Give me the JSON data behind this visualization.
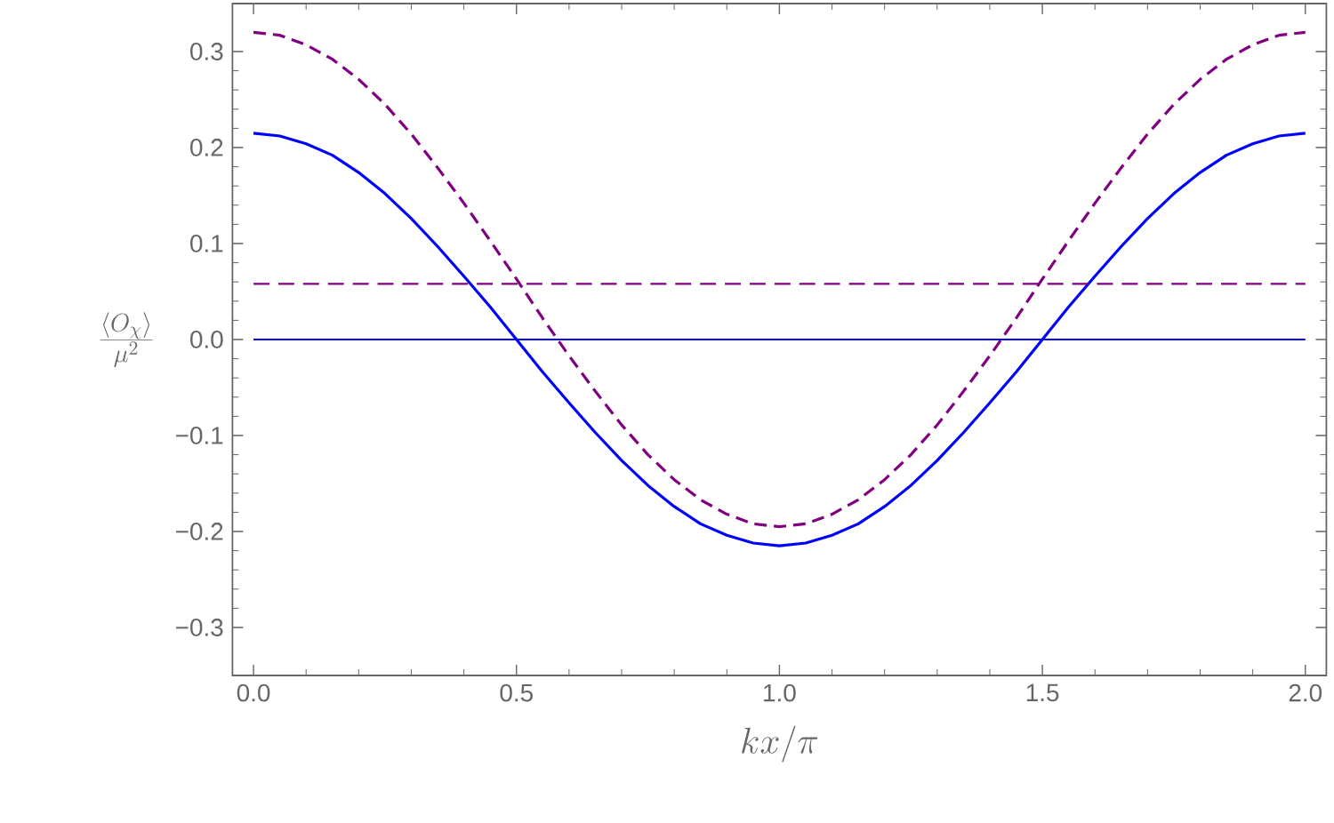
{
  "chart_data": {
    "type": "line",
    "xlabel": "kx/\\pi",
    "ylabel": "\\frac{\\langle O_\\chi \\rangle}{\\mu^2}",
    "x": [
      0,
      0.05,
      0.1,
      0.15,
      0.2,
      0.25,
      0.3,
      0.35,
      0.4,
      0.45,
      0.5,
      0.55,
      0.6,
      0.65,
      0.7,
      0.75,
      0.8,
      0.85,
      0.9,
      0.95,
      1,
      1.05,
      1.1,
      1.15,
      1.2,
      1.25,
      1.3,
      1.35,
      1.4,
      1.45,
      1.5,
      1.55,
      1.6,
      1.65,
      1.7,
      1.75,
      1.8,
      1.85,
      1.9,
      1.95,
      2
    ],
    "series": [
      {
        "color": "#0000ff",
        "line_style": "solid",
        "values": [
          0.215,
          0.212,
          0.204,
          0.192,
          0.174,
          0.152,
          0.126,
          0.097,
          0.066,
          0.034,
          0.0,
          -0.034,
          -0.066,
          -0.097,
          -0.126,
          -0.152,
          -0.174,
          -0.192,
          -0.204,
          -0.212,
          -0.215,
          -0.212,
          -0.204,
          -0.192,
          -0.174,
          -0.152,
          -0.126,
          -0.097,
          -0.066,
          -0.034,
          0.0,
          0.034,
          0.066,
          0.097,
          0.126,
          0.152,
          0.174,
          0.192,
          0.204,
          0.212,
          0.215
        ]
      },
      {
        "color": "#800080",
        "line_style": "dashed",
        "values": [
          0.32,
          0.317,
          0.307,
          0.292,
          0.271,
          0.245,
          0.214,
          0.179,
          0.142,
          0.103,
          0.063,
          0.022,
          -0.017,
          -0.054,
          -0.089,
          -0.12,
          -0.146,
          -0.167,
          -0.182,
          -0.192,
          -0.195,
          -0.192,
          -0.182,
          -0.167,
          -0.146,
          -0.12,
          -0.089,
          -0.054,
          -0.017,
          0.022,
          0.063,
          0.103,
          0.142,
          0.179,
          0.214,
          0.245,
          0.271,
          0.292,
          0.307,
          0.317,
          0.32
        ]
      }
    ],
    "ref_lines": [
      {
        "axis": "y",
        "value": 0,
        "color": "#0000ff",
        "line_style": "solid"
      },
      {
        "axis": "y",
        "value": 0.058,
        "color": "#800080",
        "line_style": "dashed"
      }
    ],
    "xlim": [
      -0.04,
      2.04
    ],
    "ylim": [
      -0.35,
      0.35
    ],
    "xticks": [
      {
        "value": 0,
        "label": "0.0"
      },
      {
        "value": 0.5,
        "label": "0.5"
      },
      {
        "value": 1,
        "label": "1.0"
      },
      {
        "value": 1.5,
        "label": "1.5"
      },
      {
        "value": 2,
        "label": "2.0"
      }
    ],
    "yticks": [
      {
        "value": -0.3,
        "label": "−0.3"
      },
      {
        "value": -0.2,
        "label": "−0.2"
      },
      {
        "value": -0.1,
        "label": "−0.1"
      },
      {
        "value": 0,
        "label": "0.0"
      },
      {
        "value": 0.1,
        "label": "0.1"
      },
      {
        "value": 0.2,
        "label": "0.2"
      },
      {
        "value": 0.3,
        "label": "0.3"
      }
    ],
    "marker": "none"
  }
}
